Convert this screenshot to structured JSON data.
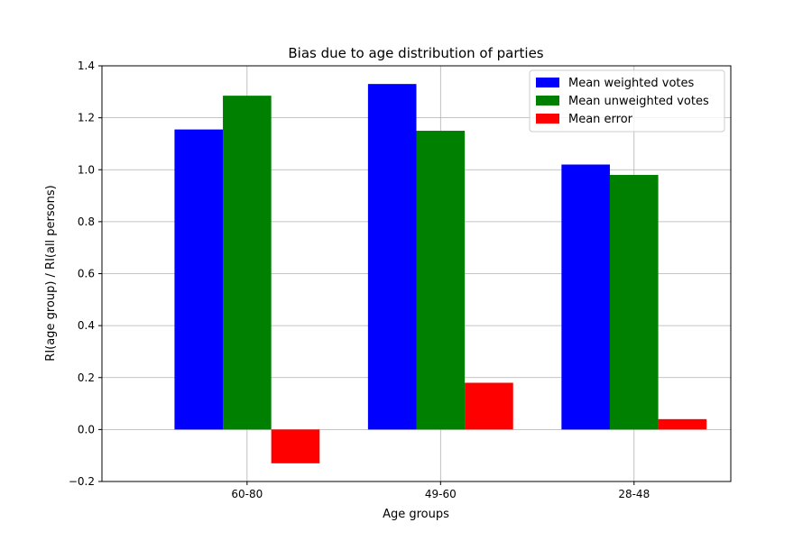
{
  "chart_data": {
    "type": "bar",
    "title": "Bias due to age distribution of parties",
    "xlabel": "Age groups",
    "ylabel": "RI(age group) / RI(all persons)",
    "categories": [
      "60-80",
      "49-60",
      "28-48"
    ],
    "series": [
      {
        "name": "Mean weighted votes",
        "color": "#0000ff",
        "values": [
          1.155,
          1.33,
          1.02
        ]
      },
      {
        "name": "Mean unweighted votes",
        "color": "#008000",
        "values": [
          1.285,
          1.15,
          0.98
        ]
      },
      {
        "name": "Mean error",
        "color": "#ff0000",
        "values": [
          -0.13,
          0.18,
          0.04
        ]
      }
    ],
    "ylim": [
      -0.2,
      1.4
    ],
    "yticks": [
      -0.2,
      0.0,
      0.2,
      0.4,
      0.6,
      0.8,
      1.0,
      1.2,
      1.4
    ],
    "ytick_labels": [
      "−0.2",
      "0.0",
      "0.2",
      "0.4",
      "0.6",
      "0.8",
      "1.0",
      "1.2",
      "1.4"
    ],
    "grid": true,
    "legend_position": "top-right"
  }
}
